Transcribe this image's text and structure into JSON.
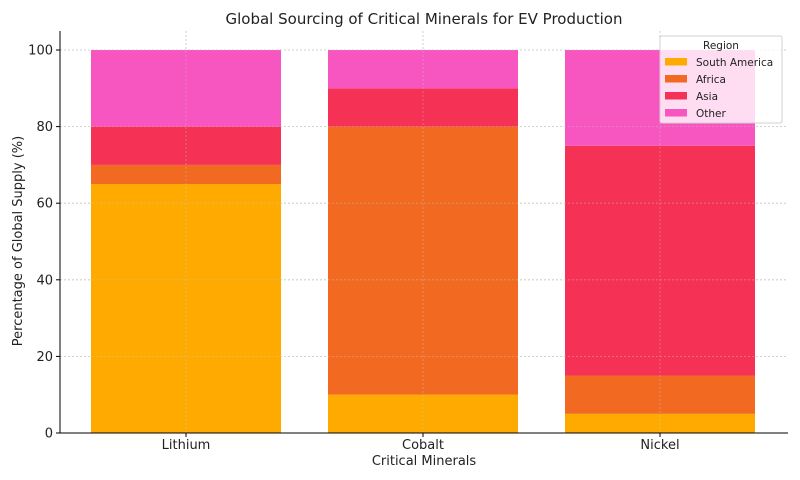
{
  "chart_data": {
    "type": "bar",
    "stacked": true,
    "title": "Global Sourcing of Critical Minerals for EV Production",
    "xlabel": "Critical Minerals",
    "ylabel": "Percentage of Global Supply (%)",
    "categories": [
      "Lithium",
      "Cobalt",
      "Nickel"
    ],
    "series": [
      {
        "name": "South America",
        "color": "#FFAA00",
        "values": [
          65,
          10,
          5
        ]
      },
      {
        "name": "Africa",
        "color": "#F26A21",
        "values": [
          5,
          70,
          10
        ]
      },
      {
        "name": "Asia",
        "color": "#F53155",
        "values": [
          10,
          10,
          60
        ]
      },
      {
        "name": "Other",
        "color": "#F755C0",
        "values": [
          20,
          10,
          25
        ]
      }
    ],
    "ylim": [
      0,
      105
    ],
    "yticks": [
      0,
      20,
      40,
      60,
      80,
      100
    ],
    "grid": true,
    "legend": {
      "title": "Region",
      "placement": "top-right"
    }
  }
}
